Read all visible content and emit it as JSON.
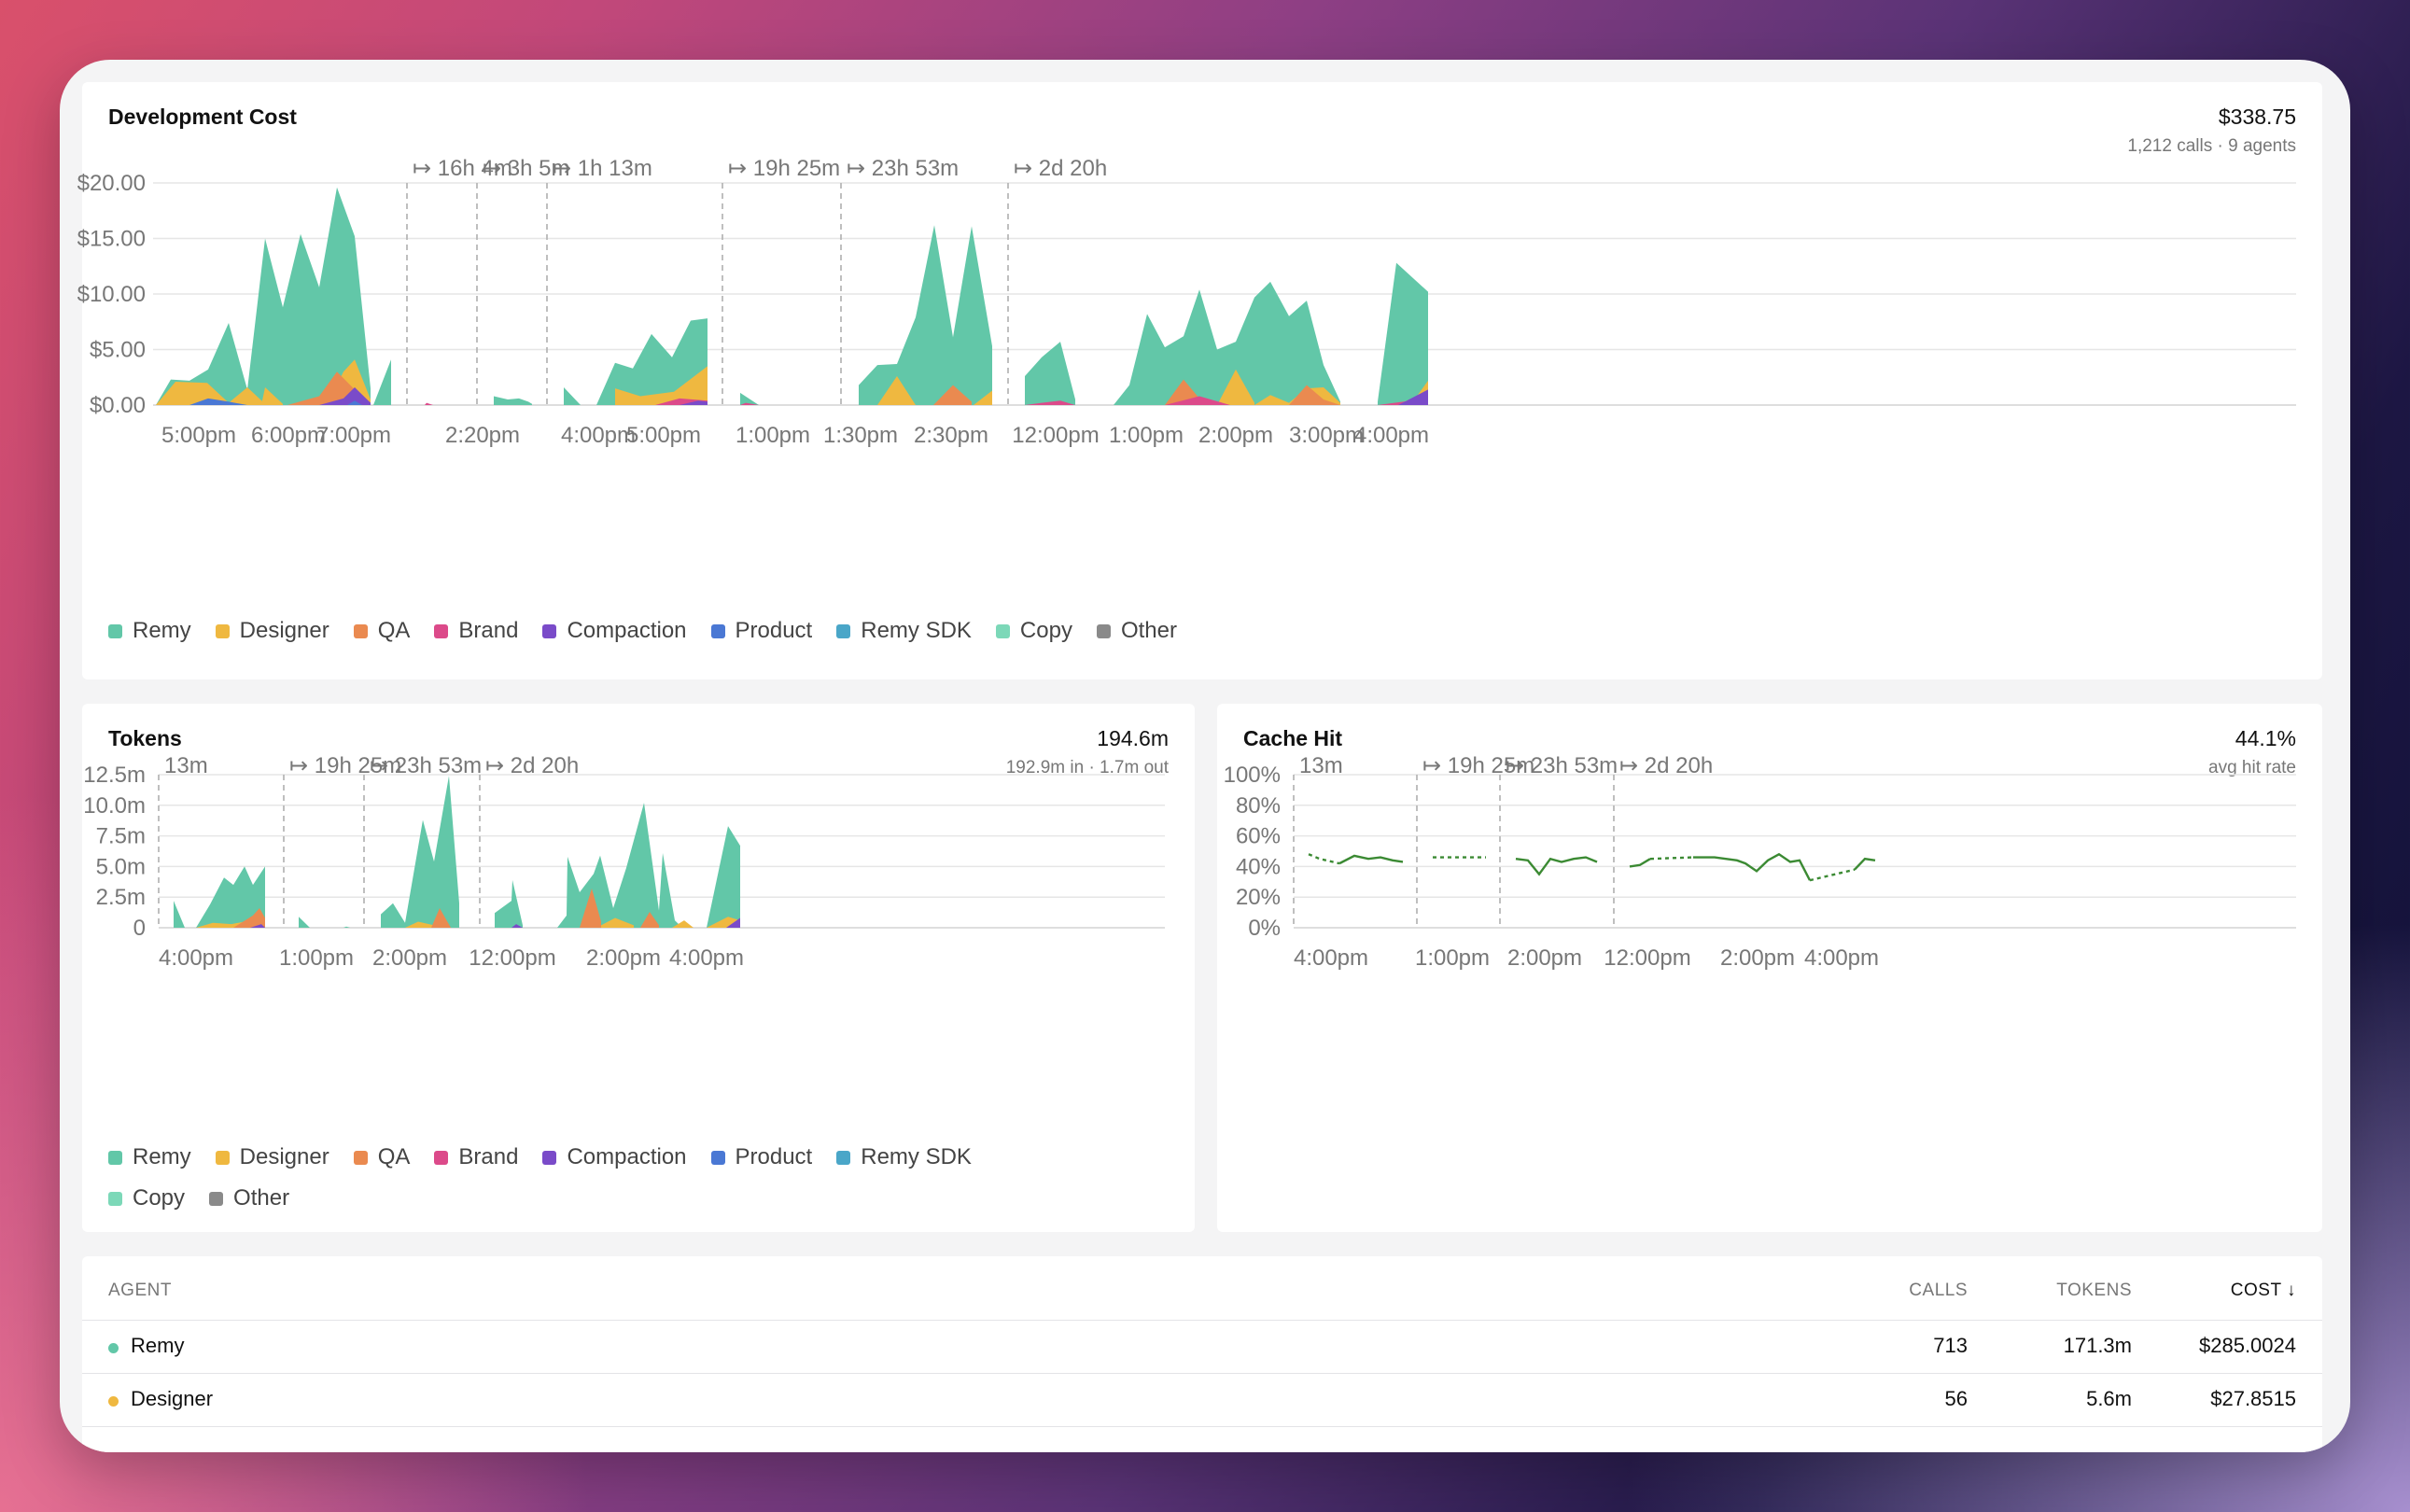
{
  "colors": {
    "Remy": "#62c7a8",
    "Designer": "#efb840",
    "QA": "#ea8a50",
    "Brand": "#dc4a8a",
    "Compaction": "#7a4bc9",
    "Product": "#4a78d4",
    "Remy SDK": "#4aa6c8",
    "Copy": "#7cd8b8",
    "Other": "#8a8a8a",
    "cache_line": "#3b8a33"
  },
  "cost_card": {
    "title": "Development Cost",
    "total": "$338.75",
    "sub": "1,212 calls · 9 agents",
    "y_ticks": [
      "$20.00",
      "$15.00",
      "$10.00",
      "$5.00",
      "$0.00"
    ],
    "x_ticks": [
      "5:00pm",
      "6:00pm",
      "7:00pm",
      "2:20pm",
      "4:00pm",
      "5:00pm",
      "1:00pm",
      "1:30pm",
      "2:30pm",
      "12:00pm",
      "1:00pm",
      "2:00pm",
      "3:00pm",
      "4:00pm"
    ],
    "gaps": [
      "↦ 16h 4m",
      "↦ 3h 5m",
      "↦ 1h 13m",
      "↦ 19h 25m",
      "↦ 23h 53m",
      "↦ 2d 20h"
    ],
    "legend": [
      "Remy",
      "Designer",
      "QA",
      "Brand",
      "Compaction",
      "Product",
      "Remy SDK",
      "Copy",
      "Other"
    ]
  },
  "tokens_card": {
    "title": "Tokens",
    "total": "194.6m",
    "sub": "192.9m in · 1.7m out",
    "y_ticks": [
      "12.5m",
      "10.0m",
      "7.5m",
      "5.0m",
      "2.5m",
      "0"
    ],
    "x_ticks": [
      "4:00pm",
      "1:00pm",
      "2:00pm",
      "12:00pm",
      "2:00pm",
      "4:00pm"
    ],
    "gaps": [
      "13m",
      "↦ 19h 25m",
      "↦ 23h 53m",
      "↦ 2d 20h"
    ],
    "legend": [
      "Remy",
      "Designer",
      "QA",
      "Brand",
      "Compaction",
      "Product",
      "Remy SDK",
      "Copy",
      "Other"
    ]
  },
  "cache_card": {
    "title": "Cache Hit",
    "total": "44.1%",
    "sub": "avg hit rate",
    "y_ticks": [
      "100%",
      "80%",
      "60%",
      "40%",
      "20%",
      "0%"
    ],
    "x_ticks": [
      "4:00pm",
      "1:00pm",
      "2:00pm",
      "12:00pm",
      "2:00pm",
      "4:00pm"
    ],
    "gaps": [
      "13m",
      "↦ 19h 25m",
      "↦ 23h 53m",
      "↦ 2d 20h"
    ]
  },
  "table": {
    "headers": {
      "agent": "AGENT",
      "calls": "CALLS",
      "tokens": "TOKENS",
      "cost": "COST ↓"
    },
    "rows": [
      {
        "agent": "Remy",
        "calls": "713",
        "tokens": "171.3m",
        "cost": "$285.0024"
      },
      {
        "agent": "Designer",
        "calls": "56",
        "tokens": "5.6m",
        "cost": "$27.8515"
      }
    ]
  },
  "chart_data": [
    {
      "type": "area",
      "title": "Development Cost",
      "ylim": [
        0,
        20
      ],
      "ylabel_ticks": [
        "$0.00",
        "$5.00",
        "$10.00",
        "$15.00",
        "$20.00"
      ],
      "note": "stacked area, approximate values read from peaks",
      "series": [
        {
          "name": "Remy",
          "values": [
            2.1,
            2.2,
            3.3,
            7.4,
            1.6,
            15.0,
            9.0,
            15.4,
            10.8,
            19.6,
            15.3,
            4.1,
            0.9,
            0.5,
            3.8,
            3.5,
            6.4,
            4.7,
            7.6,
            7.8,
            1.1,
            3.8,
            3.7,
            16.2,
            5.9,
            16.1,
            4.3,
            5.6,
            7.9,
            5.0,
            5.6,
            10.3,
            11.0,
            9.3,
            3.6,
            12.8,
            10.2
          ]
        }
      ]
    },
    {
      "type": "area",
      "title": "Tokens",
      "ylim": [
        0,
        12.5
      ],
      "series": [
        {
          "name": "Remy",
          "values": [
            2.2,
            2.0,
            4.2,
            3.6,
            5.0,
            0.7,
            0.9,
            2.0,
            8.8,
            5.5,
            12.4,
            2.0,
            3.9,
            5.8,
            4.4,
            5.9,
            4.8,
            2.4,
            10.2,
            6.0,
            3.2,
            8.3,
            6.7
          ]
        }
      ]
    },
    {
      "type": "line",
      "title": "Cache Hit",
      "ylim": [
        0,
        100
      ],
      "series": [
        {
          "name": "Cache Hit",
          "values": [
            48,
            45,
            42,
            47,
            45,
            46,
            44,
            43,
            46,
            46,
            46,
            45,
            44,
            35,
            45,
            43,
            45,
            46,
            43,
            40,
            41,
            44,
            45,
            46,
            46,
            45,
            42,
            37,
            44,
            48,
            43,
            45,
            31,
            34,
            38,
            45,
            43
          ]
        }
      ]
    }
  ]
}
